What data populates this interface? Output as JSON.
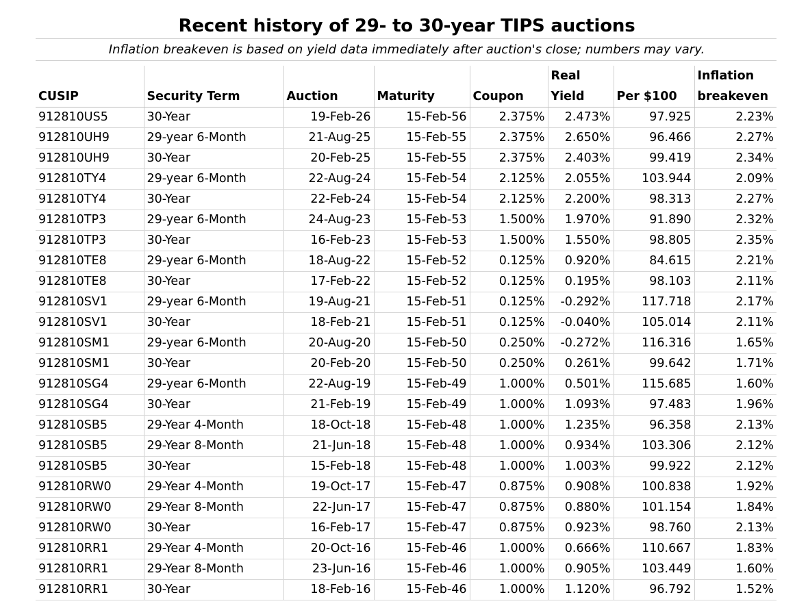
{
  "title": "Recent history of 29- to 30-year TIPS auctions",
  "subtitle": "Inflation breakeven is based on yield data immediately after auction's close; numbers may vary.",
  "headers": [
    {
      "line1": "",
      "line2": "CUSIP"
    },
    {
      "line1": "",
      "line2": "Security Term"
    },
    {
      "line1": "",
      "line2": "Auction"
    },
    {
      "line1": "",
      "line2": "Maturity"
    },
    {
      "line1": "",
      "line2": "Coupon"
    },
    {
      "line1": "Real",
      "line2": "Yield"
    },
    {
      "line1": "",
      "line2": "Per $100"
    },
    {
      "line1": "Inflation",
      "line2": "breakeven"
    }
  ],
  "rows": [
    [
      "912810US5",
      "30-Year",
      "19-Feb-26",
      "15-Feb-56",
      "2.375%",
      "2.473%",
      "97.925",
      "2.23%"
    ],
    [
      "912810UH9",
      "29-year 6-Month",
      "21-Aug-25",
      "15-Feb-55",
      "2.375%",
      "2.650%",
      "96.466",
      "2.27%"
    ],
    [
      "912810UH9",
      "30-Year",
      "20-Feb-25",
      "15-Feb-55",
      "2.375%",
      "2.403%",
      "99.419",
      "2.34%"
    ],
    [
      "912810TY4",
      "29-year 6-Month",
      "22-Aug-24",
      "15-Feb-54",
      "2.125%",
      "2.055%",
      "103.944",
      "2.09%"
    ],
    [
      "912810TY4",
      "30-Year",
      "22-Feb-24",
      "15-Feb-54",
      "2.125%",
      "2.200%",
      "98.313",
      "2.27%"
    ],
    [
      "912810TP3",
      "29-year 6-Month",
      "24-Aug-23",
      "15-Feb-53",
      "1.500%",
      "1.970%",
      "91.890",
      "2.32%"
    ],
    [
      "912810TP3",
      "30-Year",
      "16-Feb-23",
      "15-Feb-53",
      "1.500%",
      "1.550%",
      "98.805",
      "2.35%"
    ],
    [
      "912810TE8",
      "29-year 6-Month",
      "18-Aug-22",
      "15-Feb-52",
      "0.125%",
      "0.920%",
      "84.615",
      "2.21%"
    ],
    [
      "912810TE8",
      "30-Year",
      "17-Feb-22",
      "15-Feb-52",
      "0.125%",
      "0.195%",
      "98.103",
      "2.11%"
    ],
    [
      "912810SV1",
      "29-year 6-Month",
      "19-Aug-21",
      "15-Feb-51",
      "0.125%",
      "-0.292%",
      "117.718",
      "2.17%"
    ],
    [
      "912810SV1",
      "30-Year",
      "18-Feb-21",
      "15-Feb-51",
      "0.125%",
      "-0.040%",
      "105.014",
      "2.11%"
    ],
    [
      "912810SM1",
      "29-year 6-Month",
      "20-Aug-20",
      "15-Feb-50",
      "0.250%",
      "-0.272%",
      "116.316",
      "1.65%"
    ],
    [
      "912810SM1",
      "30-Year",
      "20-Feb-20",
      "15-Feb-50",
      "0.250%",
      "0.261%",
      "99.642",
      "1.71%"
    ],
    [
      "912810SG4",
      "29-year 6-Month",
      "22-Aug-19",
      "15-Feb-49",
      "1.000%",
      "0.501%",
      "115.685",
      "1.60%"
    ],
    [
      "912810SG4",
      "30-Year",
      "21-Feb-19",
      "15-Feb-49",
      "1.000%",
      "1.093%",
      "97.483",
      "1.96%"
    ],
    [
      "912810SB5",
      "29-Year 4-Month",
      "18-Oct-18",
      "15-Feb-48",
      "1.000%",
      "1.235%",
      "96.358",
      "2.13%"
    ],
    [
      "912810SB5",
      "29-Year 8-Month",
      "21-Jun-18",
      "15-Feb-48",
      "1.000%",
      "0.934%",
      "103.306",
      "2.12%"
    ],
    [
      "912810SB5",
      "30-Year",
      "15-Feb-18",
      "15-Feb-48",
      "1.000%",
      "1.003%",
      "99.922",
      "2.12%"
    ],
    [
      "912810RW0",
      "29-Year 4-Month",
      "19-Oct-17",
      "15-Feb-47",
      "0.875%",
      "0.908%",
      "100.838",
      "1.92%"
    ],
    [
      "912810RW0",
      "29-Year 8-Month",
      "22-Jun-17",
      "15-Feb-47",
      "0.875%",
      "0.880%",
      "101.154",
      "1.84%"
    ],
    [
      "912810RW0",
      "30-Year",
      "16-Feb-17",
      "15-Feb-47",
      "0.875%",
      "0.923%",
      "98.760",
      "2.13%"
    ],
    [
      "912810RR1",
      "29-Year 4-Month",
      "20-Oct-16",
      "15-Feb-46",
      "1.000%",
      "0.666%",
      "110.667",
      "1.83%"
    ],
    [
      "912810RR1",
      "29-Year 8-Month",
      "23-Jun-16",
      "15-Feb-46",
      "1.000%",
      "0.905%",
      "103.449",
      "1.60%"
    ],
    [
      "912810RR1",
      "30-Year",
      "18-Feb-16",
      "15-Feb-46",
      "1.000%",
      "1.120%",
      "96.792",
      "1.52%"
    ]
  ]
}
